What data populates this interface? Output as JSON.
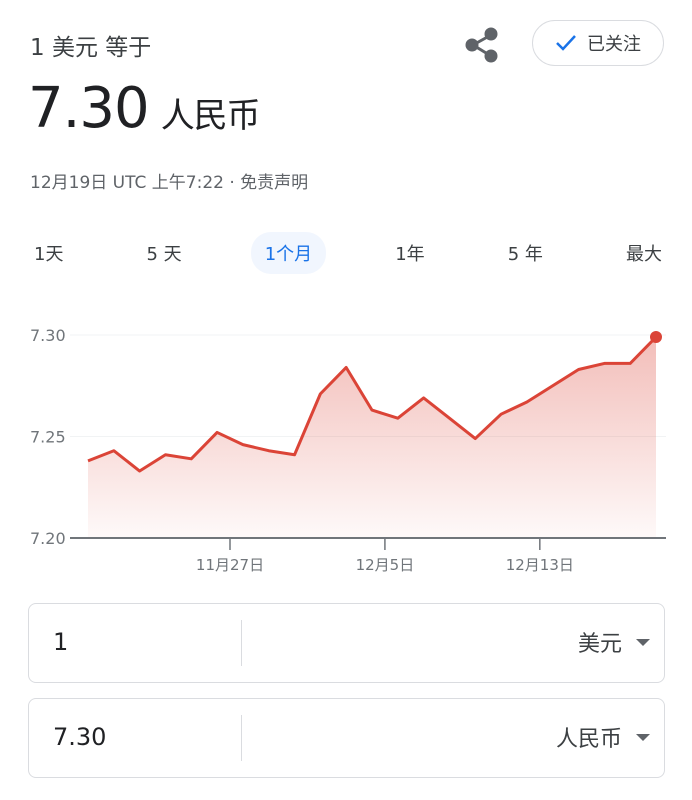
{
  "header": {
    "equals_text": "1 美元 等于",
    "rate": "7.30",
    "target_currency": "人民币",
    "meta": "12月19日 UTC 上午7:22 · 免责声明",
    "follow_label": "已关注"
  },
  "tabs": [
    {
      "label": "1天"
    },
    {
      "label": "5 天"
    },
    {
      "label": "1个月",
      "active": true
    },
    {
      "label": "1年"
    },
    {
      "label": "5 年"
    },
    {
      "label": "最大"
    }
  ],
  "colors": {
    "line": "#db4437",
    "accent": "#1a73e8"
  },
  "chart_data": {
    "type": "area",
    "ylim": [
      7.2,
      7.3
    ],
    "yticks": [
      "7.30",
      "7.25",
      "7.20"
    ],
    "xticks": [
      "11月27日",
      "12月5日",
      "12月13日"
    ],
    "values": [
      7.238,
      7.243,
      7.233,
      7.241,
      7.239,
      7.252,
      7.246,
      7.243,
      7.241,
      7.271,
      7.284,
      7.263,
      7.259,
      7.269,
      7.259,
      7.249,
      7.261,
      7.267,
      7.275,
      7.283,
      7.286,
      7.286,
      7.299
    ]
  },
  "converter": [
    {
      "value": "1",
      "currency": "美元"
    },
    {
      "value": "7.30",
      "currency": "人民币"
    }
  ]
}
